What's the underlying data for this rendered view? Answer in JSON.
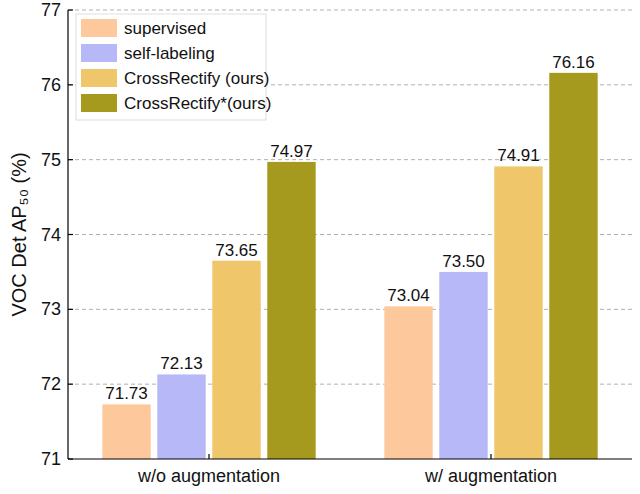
{
  "chart_data": {
    "type": "bar",
    "y_label": "VOC Det AP₅₀ (%)",
    "categories": [
      "w/o augmentation",
      "w/ augmentation"
    ],
    "series": [
      {
        "name": "supervised",
        "color": "#fdc99c",
        "values": [
          71.73,
          73.04
        ]
      },
      {
        "name": "self-labeling",
        "color": "#b7b8f7",
        "values": [
          72.13,
          73.5
        ]
      },
      {
        "name": "CrossRectify (ours)",
        "color": "#f0c66b",
        "values": [
          73.65,
          74.91
        ]
      },
      {
        "name": "CrossRectify*(ours)",
        "color": "#a69a1e",
        "values": [
          74.97,
          76.16
        ]
      }
    ],
    "value_labels": [
      [
        "71.73",
        "73.04"
      ],
      [
        "72.13",
        "73.50"
      ],
      [
        "73.65",
        "74.91"
      ],
      [
        "74.97",
        "76.16"
      ]
    ],
    "ylim": [
      71,
      77
    ],
    "yticks": [
      71,
      72,
      73,
      74,
      75,
      76,
      77
    ],
    "grid": true,
    "legend": "top-left",
    "data_labels": true
  }
}
